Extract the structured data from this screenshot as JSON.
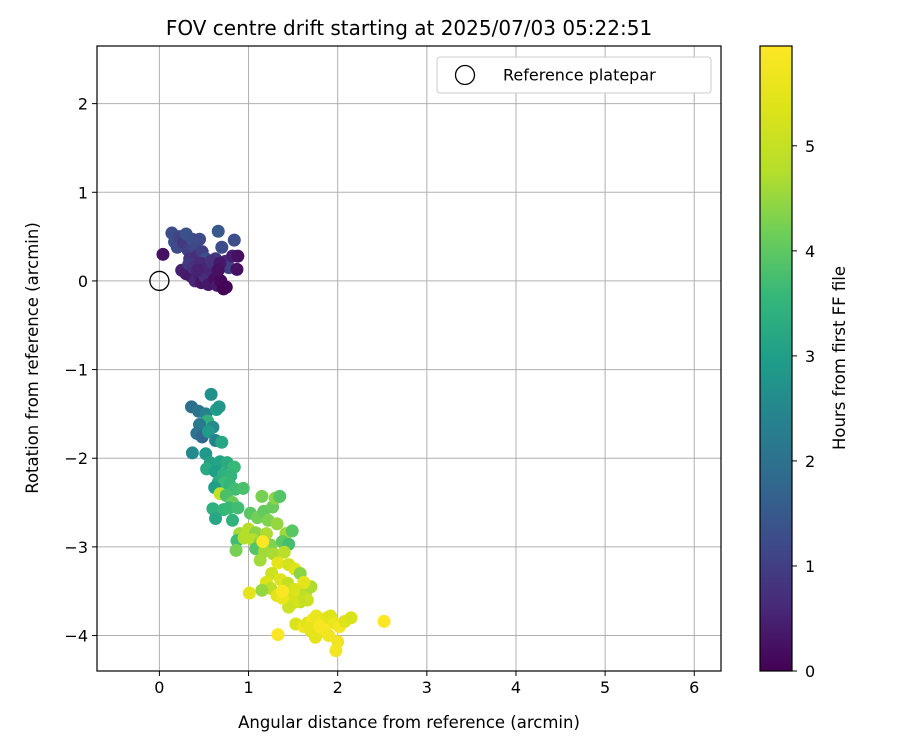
{
  "chart_data": {
    "type": "scatter",
    "title": "FOV centre drift starting at 2025/07/03 05:22:51",
    "xlabel": "Angular distance from reference (arcmin)",
    "ylabel": "Rotation from reference (arcmin)",
    "xlim": [
      -0.7,
      6.3
    ],
    "ylim": [
      -4.4,
      2.65
    ],
    "xticks": [
      0,
      1,
      2,
      3,
      4,
      5,
      6
    ],
    "xtick_labels": [
      "0",
      "1",
      "2",
      "3",
      "4",
      "5",
      "6"
    ],
    "yticks": [
      2,
      1,
      0,
      -1,
      -2,
      -3,
      -4
    ],
    "ytick_labels": [
      "2",
      "1",
      "0",
      "−1",
      "−2",
      "−3",
      "−4"
    ],
    "grid": true,
    "legend": {
      "position": "top-right",
      "entries": [
        "Reference platepar"
      ]
    },
    "reference_point": {
      "x": 0,
      "y": 0,
      "label": "Reference platepar"
    },
    "colorbar": {
      "label": "Hours from first FF file",
      "min": 0,
      "max": 5.95,
      "ticks": [
        0,
        1,
        2,
        3,
        4,
        5
      ],
      "tick_labels": [
        "0",
        "1",
        "2",
        "3",
        "4",
        "5"
      ],
      "colormap": "viridis"
    },
    "points": [
      [
        0.04,
        0.3,
        0.25
      ],
      [
        0.14,
        0.54,
        1.25
      ],
      [
        0.17,
        0.44,
        1.3
      ],
      [
        0.2,
        0.38,
        1.2
      ],
      [
        0.23,
        0.5,
        1.1
      ],
      [
        0.27,
        0.43,
        0.9
      ],
      [
        0.3,
        0.53,
        1.35
      ],
      [
        0.32,
        0.35,
        1.05
      ],
      [
        0.34,
        0.25,
        0.8
      ],
      [
        0.37,
        0.47,
        1.3
      ],
      [
        0.4,
        0.37,
        1.15
      ],
      [
        0.42,
        0.28,
        0.7
      ],
      [
        0.45,
        0.47,
        1.2
      ],
      [
        0.48,
        0.33,
        1.0
      ],
      [
        0.52,
        0.25,
        1.25
      ],
      [
        0.56,
        0.18,
        0.95
      ],
      [
        0.6,
        0.12,
        1.15
      ],
      [
        0.63,
        0.25,
        0.85
      ],
      [
        0.66,
        0.56,
        1.5
      ],
      [
        0.7,
        0.38,
        1.25
      ],
      [
        0.74,
        0.22,
        0.6
      ],
      [
        0.78,
        0.15,
        1.05
      ],
      [
        0.82,
        0.28,
        0.45
      ],
      [
        0.84,
        0.46,
        1.3
      ],
      [
        0.87,
        0.13,
        0.25
      ],
      [
        0.88,
        0.28,
        0.25
      ],
      [
        0.25,
        0.12,
        0.5
      ],
      [
        0.3,
        0.08,
        0.4
      ],
      [
        0.33,
        0.19,
        0.9
      ],
      [
        0.36,
        0.05,
        0.35
      ],
      [
        0.4,
        0.0,
        0.55
      ],
      [
        0.44,
        0.09,
        0.45
      ],
      [
        0.47,
        -0.02,
        0.3
      ],
      [
        0.51,
        0.05,
        0.7
      ],
      [
        0.55,
        -0.04,
        0.35
      ],
      [
        0.59,
        0.1,
        0.6
      ],
      [
        0.62,
        0.02,
        0.2
      ],
      [
        0.65,
        -0.05,
        0.4
      ],
      [
        0.69,
        0.0,
        0.1
      ],
      [
        0.72,
        -0.09,
        0.05
      ],
      [
        0.75,
        -0.07,
        0.05
      ],
      [
        0.38,
        0.15,
        0.75
      ],
      [
        0.46,
        0.2,
        0.65
      ],
      [
        0.54,
        0.15,
        0.55
      ],
      [
        0.58,
        0.22,
        0.75
      ],
      [
        0.68,
        0.2,
        0.35
      ],
      [
        0.66,
        0.12,
        0.25
      ],
      [
        0.43,
        0.12,
        0.5
      ],
      [
        0.58,
        -1.28,
        2.7
      ],
      [
        0.36,
        -1.42,
        1.95
      ],
      [
        0.44,
        -1.47,
        2.05
      ],
      [
        0.52,
        -1.5,
        2.35
      ],
      [
        0.64,
        -1.45,
        3.0
      ],
      [
        0.67,
        -1.42,
        2.8
      ],
      [
        0.54,
        -1.58,
        3.45
      ],
      [
        0.45,
        -1.62,
        2.2
      ],
      [
        0.6,
        -1.65,
        2.55
      ],
      [
        0.42,
        -1.72,
        2.05
      ],
      [
        0.48,
        -1.76,
        1.75
      ],
      [
        0.55,
        -1.7,
        2.9
      ],
      [
        0.63,
        -1.8,
        2.4
      ],
      [
        0.7,
        -1.82,
        3.2
      ],
      [
        0.37,
        -1.94,
        2.55
      ],
      [
        0.52,
        -1.95,
        2.85
      ],
      [
        0.57,
        -2.05,
        3.05
      ],
      [
        0.68,
        -2.04,
        3.1
      ],
      [
        0.76,
        -2.05,
        3.3
      ],
      [
        0.84,
        -2.1,
        3.6
      ],
      [
        0.53,
        -2.12,
        3.25
      ],
      [
        0.63,
        -2.15,
        3.0
      ],
      [
        0.72,
        -2.18,
        3.4
      ],
      [
        0.8,
        -2.2,
        3.5
      ],
      [
        0.66,
        -2.27,
        3.3
      ],
      [
        0.73,
        -2.28,
        3.65
      ],
      [
        0.79,
        -2.3,
        3.55
      ],
      [
        0.62,
        -2.33,
        3.0
      ],
      [
        0.85,
        -2.35,
        3.7
      ],
      [
        0.94,
        -2.34,
        3.8
      ],
      [
        0.68,
        -2.4,
        4.95
      ],
      [
        0.75,
        -2.42,
        3.8
      ],
      [
        0.82,
        -2.5,
        4.1
      ],
      [
        0.6,
        -2.57,
        3.4
      ],
      [
        0.72,
        -2.58,
        3.55
      ],
      [
        0.78,
        -2.56,
        3.6
      ],
      [
        0.88,
        -2.56,
        3.7
      ],
      [
        0.63,
        -2.68,
        3.2
      ],
      [
        0.82,
        -2.7,
        3.45
      ],
      [
        1.02,
        -2.62,
        3.95
      ],
      [
        1.1,
        -2.67,
        4.2
      ],
      [
        1.17,
        -2.6,
        4.05
      ],
      [
        1.27,
        -2.55,
        4.1
      ],
      [
        1.15,
        -2.43,
        4.25
      ],
      [
        1.3,
        -2.45,
        4.4
      ],
      [
        1.35,
        -2.43,
        3.9
      ],
      [
        1.22,
        -2.7,
        4.3
      ],
      [
        1.32,
        -2.74,
        4.5
      ],
      [
        0.9,
        -2.85,
        4.6
      ],
      [
        1.0,
        -2.8,
        4.8
      ],
      [
        1.08,
        -2.84,
        4.4
      ],
      [
        1.2,
        -2.85,
        4.7
      ],
      [
        1.42,
        -2.85,
        4.55
      ],
      [
        1.49,
        -2.82,
        3.95
      ],
      [
        0.87,
        -2.93,
        3.7
      ],
      [
        0.95,
        -2.9,
        4.75
      ],
      [
        1.05,
        -2.92,
        4.8
      ],
      [
        1.13,
        -2.95,
        4.35
      ],
      [
        1.25,
        -2.98,
        4.3
      ],
      [
        1.38,
        -2.94,
        4.0
      ],
      [
        1.45,
        -2.97,
        3.75
      ],
      [
        0.86,
        -3.04,
        4.25
      ],
      [
        1.08,
        -3.02,
        3.9
      ],
      [
        1.18,
        -3.05,
        4.6
      ],
      [
        1.28,
        -3.08,
        4.65
      ],
      [
        1.4,
        -3.06,
        4.85
      ],
      [
        1.16,
        -2.94,
        5.95
      ],
      [
        1.13,
        -3.15,
        4.6
      ],
      [
        1.33,
        -3.18,
        5.5
      ],
      [
        1.45,
        -3.2,
        5.2
      ],
      [
        1.52,
        -3.25,
        5.4
      ],
      [
        1.58,
        -3.3,
        4.4
      ],
      [
        1.26,
        -3.3,
        5.1
      ],
      [
        1.2,
        -3.4,
        5.3
      ],
      [
        1.36,
        -3.37,
        5.4
      ],
      [
        1.44,
        -3.41,
        5.0
      ],
      [
        1.25,
        -3.47,
        4.9
      ],
      [
        1.15,
        -3.49,
        4.5
      ],
      [
        1.32,
        -3.55,
        5.45
      ],
      [
        1.38,
        -3.5,
        5.6
      ],
      [
        1.45,
        -3.52,
        5.2
      ],
      [
        1.52,
        -3.48,
        5.3
      ],
      [
        1.58,
        -3.55,
        5.4
      ],
      [
        1.64,
        -3.52,
        4.9
      ],
      [
        1.7,
        -3.45,
        4.7
      ],
      [
        1.62,
        -3.4,
        5.5
      ],
      [
        1.66,
        -3.6,
        5.1
      ],
      [
        1.58,
        -3.62,
        5.0
      ],
      [
        1.5,
        -3.63,
        5.25
      ],
      [
        1.45,
        -3.68,
        5.1
      ],
      [
        1.38,
        -3.58,
        5.6
      ],
      [
        1.38,
        -3.5,
        5.9
      ],
      [
        1.01,
        -3.52,
        5.5
      ],
      [
        1.53,
        -3.87,
        5.3
      ],
      [
        1.62,
        -3.9,
        5.7
      ],
      [
        1.66,
        -3.86,
        5.4
      ],
      [
        1.72,
        -3.82,
        5.8
      ],
      [
        1.76,
        -3.78,
        5.6
      ],
      [
        1.82,
        -3.85,
        5.7
      ],
      [
        1.88,
        -3.8,
        5.5
      ],
      [
        1.92,
        -3.78,
        5.4
      ],
      [
        1.96,
        -3.86,
        5.6
      ],
      [
        2.02,
        -3.9,
        5.8
      ],
      [
        2.08,
        -3.84,
        5.4
      ],
      [
        2.15,
        -3.8,
        5.3
      ],
      [
        1.7,
        -3.95,
        5.4
      ],
      [
        1.78,
        -3.97,
        5.6
      ],
      [
        1.85,
        -3.94,
        5.9
      ],
      [
        1.9,
        -4.0,
        5.7
      ],
      [
        1.75,
        -4.02,
        5.5
      ],
      [
        1.68,
        -3.92,
        5.55
      ],
      [
        1.33,
        -3.99,
        5.9
      ],
      [
        2.0,
        -4.07,
        5.7
      ],
      [
        1.98,
        -4.17,
        5.75
      ],
      [
        2.52,
        -3.84,
        5.95
      ],
      [
        1.8,
        -3.9,
        5.85
      ]
    ]
  }
}
